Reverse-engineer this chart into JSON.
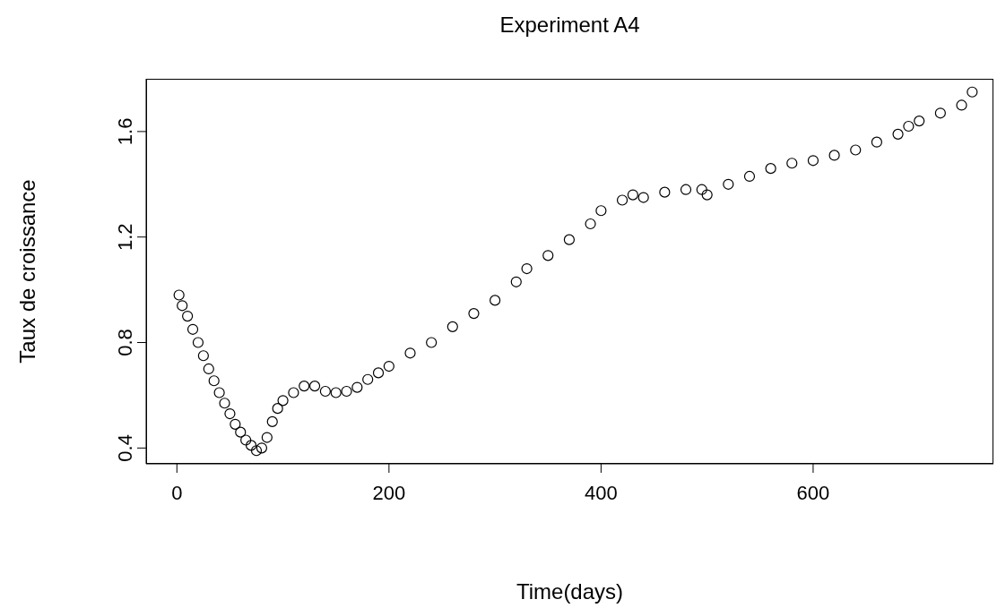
{
  "chart_data": {
    "type": "scatter",
    "title": "Experiment A4",
    "xlabel": "Time(days)",
    "ylabel": "Taux de croissance",
    "marker": "circle",
    "grid": false,
    "legend": false,
    "xlim": [
      -29,
      770
    ],
    "xticks": [
      0,
      200,
      400,
      600
    ],
    "ylim": [
      0.34,
      1.8
    ],
    "yticks": [
      0.4,
      0.8,
      1.2,
      1.6
    ],
    "series": [
      {
        "color": "#000000",
        "x": [
          2,
          5,
          10,
          15,
          20,
          25,
          30,
          35,
          40,
          45,
          50,
          55,
          60,
          65,
          70,
          75,
          80,
          85,
          90,
          95,
          100,
          110,
          120,
          130,
          140,
          150,
          160,
          170,
          180,
          190,
          200,
          220,
          240,
          260,
          280,
          300,
          320,
          330,
          350,
          370,
          390,
          400,
          420,
          430,
          440,
          460,
          480,
          495,
          500,
          520,
          540,
          560,
          580,
          600,
          620,
          640,
          660,
          680,
          690,
          700,
          720,
          740,
          750
        ],
        "values": [
          0.98,
          0.94,
          0.9,
          0.85,
          0.8,
          0.75,
          0.7,
          0.655,
          0.61,
          0.57,
          0.53,
          0.49,
          0.46,
          0.43,
          0.41,
          0.39,
          0.4,
          0.44,
          0.5,
          0.55,
          0.58,
          0.61,
          0.635,
          0.635,
          0.615,
          0.61,
          0.615,
          0.63,
          0.66,
          0.685,
          0.71,
          0.76,
          0.8,
          0.86,
          0.91,
          0.96,
          1.03,
          1.08,
          1.13,
          1.19,
          1.25,
          1.3,
          1.34,
          1.36,
          1.35,
          1.37,
          1.38,
          1.38,
          1.36,
          1.4,
          1.43,
          1.46,
          1.48,
          1.49,
          1.51,
          1.53,
          1.56,
          1.59,
          1.62,
          1.64,
          1.67,
          1.7,
          1.75
        ]
      }
    ]
  }
}
